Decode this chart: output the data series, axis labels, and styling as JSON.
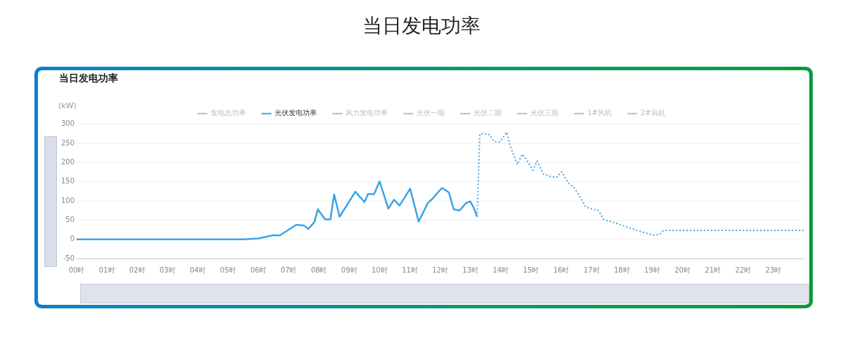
{
  "chart_data": {
    "type": "line",
    "title": "当日发电功率",
    "subtitle": "当日发电功率",
    "ylabel": "(kW)",
    "xlim": [
      0,
      24
    ],
    "xticks": [
      {
        "value": 0,
        "label": "00时"
      },
      {
        "value": 1,
        "label": "01时"
      },
      {
        "value": 2,
        "label": "02时"
      },
      {
        "value": 3,
        "label": "03时"
      },
      {
        "value": 4,
        "label": "04时"
      },
      {
        "value": 5,
        "label": "05时"
      },
      {
        "value": 6,
        "label": "06时"
      },
      {
        "value": 7,
        "label": "07时"
      },
      {
        "value": 8,
        "label": "08时"
      },
      {
        "value": 9,
        "label": "09时"
      },
      {
        "value": 10,
        "label": "10时"
      },
      {
        "value": 11,
        "label": "11时"
      },
      {
        "value": 12,
        "label": "12时"
      },
      {
        "value": 13,
        "label": "13时"
      },
      {
        "value": 14,
        "label": "14时"
      },
      {
        "value": 15,
        "label": "15时"
      },
      {
        "value": 16,
        "label": "16时"
      },
      {
        "value": 17,
        "label": "17时"
      },
      {
        "value": 18,
        "label": "18时"
      },
      {
        "value": 19,
        "label": "19时"
      },
      {
        "value": 20,
        "label": "20时"
      },
      {
        "value": 21,
        "label": "21时"
      },
      {
        "value": 22,
        "label": "22时"
      },
      {
        "value": 23,
        "label": "23时"
      }
    ],
    "ylim": [
      -50,
      300
    ],
    "yticks": [
      -50,
      0,
      50,
      100,
      150,
      200,
      250,
      300
    ],
    "grid": "y",
    "legend": "top",
    "marker": "none",
    "series": [
      {
        "name": "发电总功率",
        "color": "#bbbbbb"
      },
      {
        "name": "光伏发电功率",
        "color": "#3aa4e8",
        "line_style": "solid",
        "x": [
          0,
          5.5,
          6.0,
          6.5,
          6.7,
          7.0,
          7.25,
          7.5,
          7.65,
          7.85,
          7.96,
          8.2,
          8.38,
          8.5,
          8.68,
          8.85,
          9.2,
          9.5,
          9.62,
          9.82,
          10.0,
          10.29,
          10.48,
          10.66,
          11.01,
          11.29,
          11.59,
          11.76,
          12.06,
          12.29,
          12.45,
          12.64,
          12.85,
          12.99,
          13.1,
          13.22
        ],
        "values": [
          0,
          0,
          2,
          11,
          10,
          25,
          38,
          36,
          27,
          45,
          78,
          52,
          52,
          117,
          59,
          80,
          124,
          97,
          118,
          118,
          151,
          80,
          103,
          88,
          132,
          46,
          94,
          107,
          134,
          122,
          78,
          75,
          94,
          99,
          84,
          59
        ]
      },
      {
        "color": "#3aa4e8",
        "line_style": "dotted",
        "x": [
          13.22,
          13.31,
          13.38,
          13.62,
          13.8,
          13.97,
          14.2,
          14.32,
          14.55,
          14.71,
          14.85,
          15.06,
          15.2,
          15.41,
          15.64,
          15.83,
          16.02,
          16.22,
          16.41,
          16.6,
          16.81,
          17.04,
          17.23,
          17.39,
          17.81,
          18.2,
          18.58,
          19.04,
          19.25,
          19.37,
          24
        ],
        "values": [
          59,
          275,
          275,
          273,
          254,
          254,
          279,
          241,
          195,
          222,
          208,
          180,
          204,
          170,
          164,
          161,
          176,
          147,
          136,
          113,
          84,
          78,
          75,
          52,
          42,
          31,
          21,
          11,
          13,
          23,
          23
        ]
      },
      {
        "name": "风力发电功率",
        "color": "#bbbbbb"
      },
      {
        "name": "光伏一期",
        "color": "#bbbbbb"
      },
      {
        "name": "光伏二期",
        "color": "#bbbbbb"
      },
      {
        "name": "光伏三期",
        "color": "#bbbbbb"
      },
      {
        "name": "1#风机",
        "color": "#bbbbbb"
      },
      {
        "name": "2#风机",
        "color": "#bbbbbb"
      }
    ]
  }
}
